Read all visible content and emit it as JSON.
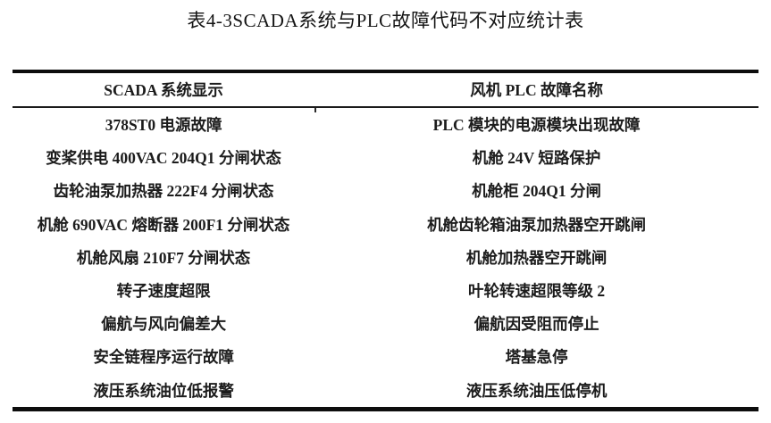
{
  "title": "表4-3SCADA系统与PLC故障代码不对应统计表",
  "colors": {
    "background": "#ffffff",
    "text": "#1c1c1c",
    "rule_heavy": "#0d0d0d",
    "rule_light": "#1b1b1b"
  },
  "table": {
    "columns": [
      "SCADA 系统显示",
      "风机 PLC 故障名称"
    ],
    "rows": [
      {
        "scada": "378ST0 电源故障",
        "plc": "PLC 模块的电源模块出现故障"
      },
      {
        "scada": "变桨供电 400VAC 204Q1 分闸状态",
        "plc": "机舱 24V 短路保护"
      },
      {
        "scada": "齿轮油泵加热器 222F4 分闸状态",
        "plc": "机舱柜 204Q1 分闸"
      },
      {
        "scada": "机舱 690VAC 熔断器 200F1 分闸状态",
        "plc": "机舱齿轮箱油泵加热器空开跳闸"
      },
      {
        "scada": "机舱风扇 210F7 分闸状态",
        "plc": "机舱加热器空开跳闸"
      },
      {
        "scada": "转子速度超限",
        "plc": "叶轮转速超限等级 2"
      },
      {
        "scada": "偏航与风向偏差大",
        "plc": "偏航因受阻而停止"
      },
      {
        "scada": "安全链程序运行故障",
        "plc": "塔基急停"
      },
      {
        "scada": "液压系统油位低报警",
        "plc": "液压系统油压低停机"
      }
    ]
  }
}
